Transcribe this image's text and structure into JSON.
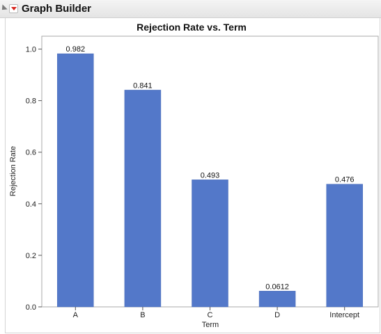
{
  "header": {
    "title": "Graph Builder",
    "disclosure_icon": "disclosure-triangle-icon",
    "menu_icon": "red-triangle-menu-icon",
    "menu_color": "#d7261e"
  },
  "chart_data": {
    "type": "bar",
    "title": "Rejection Rate vs. Term",
    "xlabel": "Term",
    "ylabel": "Rejection Rate",
    "categories": [
      "A",
      "B",
      "C",
      "D",
      "Intercept"
    ],
    "values": [
      0.982,
      0.841,
      0.493,
      0.0612,
      0.476
    ],
    "value_labels": [
      "0.982",
      "0.841",
      "0.493",
      "0.0612",
      "0.476"
    ],
    "ylim": [
      0,
      1.05
    ],
    "yticks": [
      0.0,
      0.2,
      0.4,
      0.6,
      0.8,
      1.0
    ],
    "ytick_labels": [
      "0.0",
      "0.2",
      "0.4",
      "0.6",
      "0.8",
      "1.0"
    ],
    "bar_color": "#5378c9",
    "grid": false,
    "legend": "none"
  }
}
